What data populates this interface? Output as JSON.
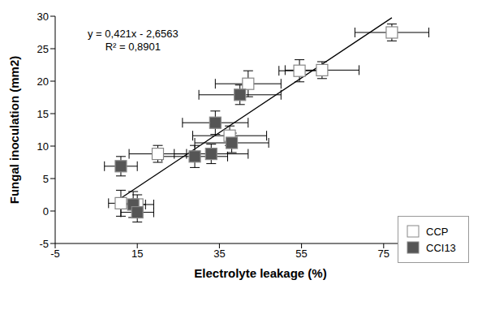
{
  "chart_data": {
    "type": "scatter",
    "x_label": "Electrolyte leakage (%)",
    "y_label": "Fungal inoculation (mm2)",
    "xlim": [
      -5,
      95
    ],
    "ylim": [
      -5,
      30
    ],
    "xticks": [
      -5,
      15,
      35,
      55,
      75
    ],
    "yticks": [
      -5,
      0,
      5,
      10,
      15,
      20,
      25,
      30
    ],
    "legend": "lower right",
    "series": [
      {
        "name": "CCP",
        "color": "#ffffff",
        "marker": "square",
        "x": [
          77,
          60,
          54.5,
          42,
          37.5,
          20,
          11,
          15
        ],
        "values": [
          27.5,
          21.7,
          21.6,
          19.6,
          11.6,
          8.8,
          1.2,
          1.0
        ],
        "x_error": [
          9,
          9,
          5,
          8,
          9,
          7,
          3,
          4
        ],
        "y_error": [
          1.3,
          1.3,
          1.7,
          2,
          1.5,
          1.3,
          2,
          1.5
        ]
      },
      {
        "name": "CCI13",
        "color": "#555555",
        "marker": "square",
        "x": [
          40,
          34,
          38,
          33,
          29,
          11,
          14,
          15
        ],
        "values": [
          17.9,
          13.6,
          10.5,
          8.8,
          8.4,
          6.9,
          1.0,
          -0.2
        ],
        "x_error": [
          10,
          8,
          9,
          9,
          8,
          4,
          3,
          4
        ],
        "y_error": [
          1.5,
          1.8,
          1.5,
          1.5,
          1.7,
          1.5,
          2,
          1.5
        ]
      }
    ],
    "trendline": {
      "slope": 0.421,
      "intercept": -2.6563,
      "r_squared": 0.8901,
      "x_range": [
        10,
        77
      ],
      "color": "#000000"
    },
    "annotations": [
      "y = 0,421x - 2,6563",
      "R² = 0,8901"
    ]
  }
}
